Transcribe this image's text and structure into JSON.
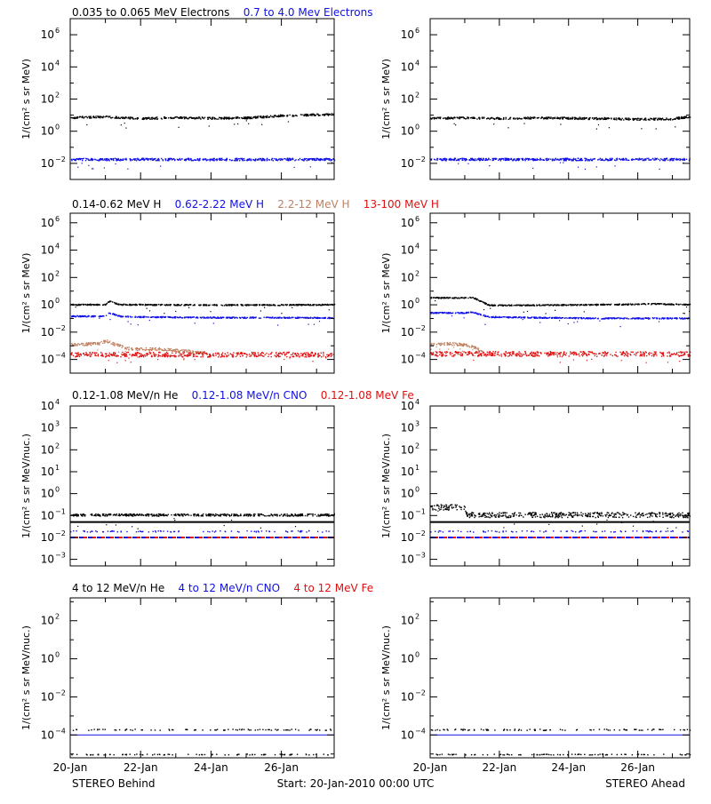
{
  "colors": {
    "black": "#000000",
    "blue": "#1010e6",
    "tan": "#c08060",
    "red": "#e01010"
  },
  "time_axis": {
    "labels": [
      "20-Jan",
      "22-Jan",
      "24-Jan",
      "26-Jan"
    ],
    "values": [
      0,
      2,
      4,
      6
    ],
    "range": [
      0,
      7.5
    ]
  },
  "footer": {
    "left": "STEREO Behind",
    "center": "Start: 20-Jan-2010 00:00 UTC",
    "right": "STEREO Ahead"
  },
  "chart_data": [
    {
      "type": "scatter",
      "row_title": [
        {
          "text": "0.035 to 0.065 MeV Electrons",
          "color": "#000000"
        },
        {
          "text": "0.7 to 4.0 Mev Electrons",
          "color": "#1010e6"
        }
      ],
      "ylabel": "1/(cm² s sr MeV)",
      "yscale": "log",
      "ylim_exp": [
        -3,
        7
      ],
      "ytick_exps": [
        -2,
        0,
        2,
        4,
        6
      ],
      "panels": [
        {
          "spacecraft": "STEREO Behind",
          "series": [
            {
              "color": "#000000",
              "x": [
                0,
                1,
                2,
                3,
                4,
                5,
                6,
                7,
                7.5
              ],
              "logy": [
                0.88,
                0.93,
                0.82,
                0.88,
                0.84,
                0.86,
                1.0,
                1.06,
                1.08
              ],
              "spread": 0.06
            },
            {
              "color": "#1010e6",
              "x": [
                0,
                7.5
              ],
              "logy": [
                -1.72,
                -1.72
              ],
              "spread": 0.07
            }
          ]
        },
        {
          "spacecraft": "STEREO Ahead",
          "series": [
            {
              "color": "#000000",
              "x": [
                0,
                1,
                2,
                3,
                4,
                5,
                6,
                7,
                7.5
              ],
              "logy": [
                0.85,
                0.86,
                0.82,
                0.86,
                0.84,
                0.82,
                0.78,
                0.8,
                0.95
              ],
              "spread": 0.06
            },
            {
              "color": "#1010e6",
              "x": [
                0,
                7.5
              ],
              "logy": [
                -1.72,
                -1.72
              ],
              "spread": 0.07
            }
          ]
        }
      ]
    },
    {
      "type": "scatter",
      "row_title": [
        {
          "text": "0.14-0.62 MeV H",
          "color": "#000000"
        },
        {
          "text": "0.62-2.22 MeV H",
          "color": "#1010e6"
        },
        {
          "text": "2.2-12 MeV H",
          "color": "#c08060"
        },
        {
          "text": "13-100 MeV H",
          "color": "#e01010"
        }
      ],
      "ylabel": "1/(cm² s sr MeV)",
      "yscale": "log",
      "ylim_exp": [
        -5,
        6.7
      ],
      "ytick_exps": [
        -4,
        -2,
        0,
        2,
        4,
        6
      ],
      "panels": [
        {
          "spacecraft": "STEREO Behind",
          "series": [
            {
              "color": "#000000",
              "x": [
                0,
                1.0,
                1.1,
                1.4,
                2,
                4,
                6,
                7.5
              ],
              "logy": [
                0.05,
                0.05,
                0.3,
                0.05,
                0.05,
                0.02,
                0.03,
                0.05
              ],
              "spread": 0.04
            },
            {
              "color": "#1010e6",
              "x": [
                0,
                1.0,
                1.1,
                1.4,
                2,
                4,
                6,
                7.5
              ],
              "logy": [
                -0.8,
                -0.8,
                -0.55,
                -0.8,
                -0.85,
                -0.9,
                -0.9,
                -0.92
              ],
              "spread": 0.04
            },
            {
              "color": "#c08060",
              "x": [
                0,
                0.8,
                1.0,
                1.3,
                1.7,
                2.5,
                3.5,
                3.9
              ],
              "logy": [
                -2.9,
                -2.8,
                -2.6,
                -2.9,
                -3.2,
                -3.2,
                -3.4,
                -3.5
              ],
              "spread": 0.1
            },
            {
              "color": "#e01010",
              "x": [
                0,
                7.5
              ],
              "logy": [
                -3.6,
                -3.6
              ],
              "spread": 0.18
            }
          ]
        },
        {
          "spacecraft": "STEREO Ahead",
          "series": [
            {
              "color": "#000000",
              "x": [
                0,
                1.0,
                1.2,
                1.7,
                2.5,
                5,
                6.5,
                7.5
              ],
              "logy": [
                0.55,
                0.55,
                0.6,
                0.0,
                0.0,
                0.05,
                0.1,
                0.05
              ],
              "spread": 0.04
            },
            {
              "color": "#1010e6",
              "x": [
                0,
                1.0,
                1.2,
                1.7,
                3,
                5,
                6.5,
                7.5
              ],
              "logy": [
                -0.55,
                -0.55,
                -0.5,
                -0.85,
                -0.9,
                -0.95,
                -0.95,
                -0.95
              ],
              "spread": 0.04
            },
            {
              "color": "#c08060",
              "x": [
                0,
                0.5,
                1.0,
                1.3,
                1.5
              ],
              "logy": [
                -2.9,
                -2.8,
                -2.9,
                -3.1,
                -3.4
              ],
              "spread": 0.1
            },
            {
              "color": "#e01010",
              "x": [
                0,
                7.5
              ],
              "logy": [
                -3.55,
                -3.55
              ],
              "spread": 0.18
            }
          ]
        }
      ]
    },
    {
      "type": "scatter",
      "row_title": [
        {
          "text": "0.12-1.08 MeV/n He",
          "color": "#000000"
        },
        {
          "text": "0.12-1.08 MeV/n CNO",
          "color": "#1010e6"
        },
        {
          "text": "0.12-1.08 MeV Fe",
          "color": "#e01010"
        }
      ],
      "ylabel": "1/(cm² s sr MeV/nuc.)",
      "yscale": "log",
      "ylim_exp": [
        -3.3,
        4
      ],
      "ytick_exps": [
        -3,
        -2,
        -1,
        0,
        1,
        2,
        3,
        4
      ],
      "panels": [
        {
          "spacecraft": "STEREO Behind",
          "series": [
            {
              "color": "#000000",
              "x": [
                0,
                7.5
              ],
              "logy": [
                -1.3,
                -1.3
              ],
              "spread": 0.0,
              "style": "line"
            },
            {
              "color": "#000000",
              "x": [
                0,
                7.5
              ],
              "logy": [
                -0.95,
                -0.95
              ],
              "spread": 0.05
            },
            {
              "color": "#1010e6",
              "x": [
                0,
                7.5
              ],
              "logy": [
                -1.7,
                -1.7
              ],
              "spread": 0.03,
              "style": "sparse"
            },
            {
              "color": "#1010e6",
              "x": [
                0,
                7.5
              ],
              "logy": [
                -2.0,
                -2.0
              ],
              "spread": 0.0,
              "style": "dashed"
            },
            {
              "color": "#e01010",
              "x": [
                0,
                7.5
              ],
              "logy": [
                -2.0,
                -2.0
              ],
              "spread": 0.0,
              "style": "dashed2"
            }
          ]
        },
        {
          "spacecraft": "STEREO Ahead",
          "series": [
            {
              "color": "#000000",
              "x": [
                0,
                7.5
              ],
              "logy": [
                -1.3,
                -1.3
              ],
              "spread": 0.0,
              "style": "line"
            },
            {
              "color": "#000000",
              "x": [
                0,
                1.0,
                1.05,
                7.5
              ],
              "logy": [
                -0.6,
                -0.6,
                -0.95,
                -0.95
              ],
              "spread": 0.12
            },
            {
              "color": "#1010e6",
              "x": [
                0,
                7.5
              ],
              "logy": [
                -1.7,
                -1.7
              ],
              "spread": 0.03,
              "style": "sparse"
            },
            {
              "color": "#1010e6",
              "x": [
                0,
                7.5
              ],
              "logy": [
                -2.0,
                -2.0
              ],
              "spread": 0.0,
              "style": "dashed"
            },
            {
              "color": "#e01010",
              "x": [
                0,
                7.5
              ],
              "logy": [
                -2.0,
                -2.0
              ],
              "spread": 0.0,
              "style": "dashed2"
            }
          ]
        }
      ]
    },
    {
      "type": "scatter",
      "row_title": [
        {
          "text": "4 to 12 MeV/n He",
          "color": "#000000"
        },
        {
          "text": "4 to 12 MeV/n CNO",
          "color": "#1010e6"
        },
        {
          "text": "4 to 12 MeV Fe",
          "color": "#e01010"
        }
      ],
      "ylabel": "1/(cm² s sr MeV/nuc.)",
      "yscale": "log",
      "ylim_exp": [
        -5.2,
        3.2
      ],
      "ytick_exps": [
        -4,
        -2,
        0,
        2
      ],
      "panels": [
        {
          "spacecraft": "STEREO Behind",
          "series": [
            {
              "color": "#1010e6",
              "x": [
                0,
                7.5
              ],
              "logy": [
                -4.0,
                -4.0
              ],
              "spread": 0.0,
              "style": "line"
            },
            {
              "color": "#000000",
              "x": [
                0,
                7.5
              ],
              "logy": [
                -3.7,
                -3.7
              ],
              "spread": 0.03,
              "style": "sparse"
            },
            {
              "color": "#000000",
              "x": [
                0,
                7.5
              ],
              "logy": [
                -5.0,
                -5.0
              ],
              "spread": 0.02,
              "style": "sparse"
            }
          ]
        },
        {
          "spacecraft": "STEREO Ahead",
          "series": [
            {
              "color": "#1010e6",
              "x": [
                0,
                7.5
              ],
              "logy": [
                -4.0,
                -4.0
              ],
              "spread": 0.0,
              "style": "line"
            },
            {
              "color": "#000000",
              "x": [
                0,
                7.5
              ],
              "logy": [
                -3.7,
                -3.7
              ],
              "spread": 0.03,
              "style": "sparse"
            },
            {
              "color": "#000000",
              "x": [
                0,
                7.5
              ],
              "logy": [
                -5.0,
                -5.0
              ],
              "spread": 0.02,
              "style": "sparse"
            }
          ]
        }
      ]
    }
  ]
}
